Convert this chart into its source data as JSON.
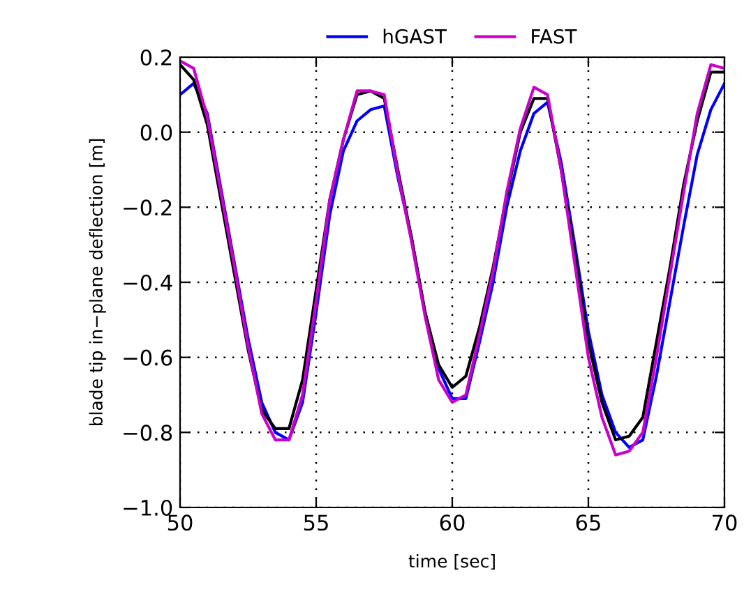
{
  "chart_data": {
    "type": "line",
    "xlabel": "time [sec]",
    "ylabel": "blade tip in−plane deflection [m]",
    "xlim": [
      50,
      70
    ],
    "xticks": [
      50,
      55,
      60,
      65,
      70
    ],
    "ylim": [
      -1.0,
      0.2
    ],
    "yticks": [
      {
        "value": -1.0,
        "label": "−1.0"
      },
      {
        "value": -0.8,
        "label": "−0.8"
      },
      {
        "value": -0.6,
        "label": "−0.6"
      },
      {
        "value": -0.4,
        "label": "−0.4"
      },
      {
        "value": -0.2,
        "label": "−0.2"
      },
      {
        "value": 0.0,
        "label": "0.0"
      },
      {
        "value": 0.2,
        "label": "0.2"
      }
    ],
    "grid": true,
    "legend": "top",
    "line_style": "solid",
    "x": [
      50,
      50.5,
      51,
      51.5,
      52,
      52.5,
      53,
      53.5,
      54,
      54.5,
      55,
      55.5,
      56,
      56.5,
      57,
      57.5,
      58,
      58.5,
      59,
      59.5,
      60,
      60.5,
      61,
      61.5,
      62,
      62.5,
      63,
      63.5,
      64,
      64.5,
      65,
      65.5,
      66,
      66.5,
      67,
      67.5,
      68,
      68.5,
      69,
      69.5,
      70
    ],
    "series": [
      {
        "name": "hGAST",
        "color": "#0000ff",
        "values": [
          0.1,
          0.13,
          0.05,
          -0.15,
          -0.35,
          -0.55,
          -0.72,
          -0.8,
          -0.82,
          -0.72,
          -0.48,
          -0.22,
          -0.05,
          0.03,
          0.06,
          0.07,
          -0.12,
          -0.28,
          -0.48,
          -0.63,
          -0.71,
          -0.71,
          -0.56,
          -0.4,
          -0.2,
          -0.05,
          0.05,
          0.08,
          -0.08,
          -0.3,
          -0.53,
          -0.7,
          -0.8,
          -0.84,
          -0.82,
          -0.65,
          -0.45,
          -0.25,
          -0.06,
          0.06,
          0.13
        ]
      },
      {
        "color": "#000000",
        "values": [
          0.18,
          0.14,
          0.02,
          -0.18,
          -0.38,
          -0.58,
          -0.74,
          -0.79,
          -0.79,
          -0.66,
          -0.42,
          -0.18,
          -0.02,
          0.1,
          0.11,
          0.09,
          -0.1,
          -0.28,
          -0.48,
          -0.62,
          -0.68,
          -0.65,
          -0.52,
          -0.36,
          -0.17,
          0.0,
          0.09,
          0.09,
          -0.1,
          -0.32,
          -0.56,
          -0.72,
          -0.82,
          -0.81,
          -0.76,
          -0.56,
          -0.36,
          -0.14,
          0.03,
          0.16,
          0.16
        ]
      },
      {
        "name": "FAST",
        "color": "#cc00cc",
        "values": [
          0.19,
          0.17,
          0.04,
          -0.16,
          -0.36,
          -0.57,
          -0.75,
          -0.82,
          -0.82,
          -0.7,
          -0.45,
          -0.18,
          -0.02,
          0.11,
          0.11,
          0.1,
          -0.11,
          -0.29,
          -0.49,
          -0.66,
          -0.72,
          -0.7,
          -0.54,
          -0.37,
          -0.16,
          0.01,
          0.12,
          0.1,
          -0.1,
          -0.35,
          -0.6,
          -0.76,
          -0.86,
          -0.85,
          -0.8,
          -0.6,
          -0.38,
          -0.16,
          0.05,
          0.18,
          0.17
        ]
      }
    ]
  }
}
